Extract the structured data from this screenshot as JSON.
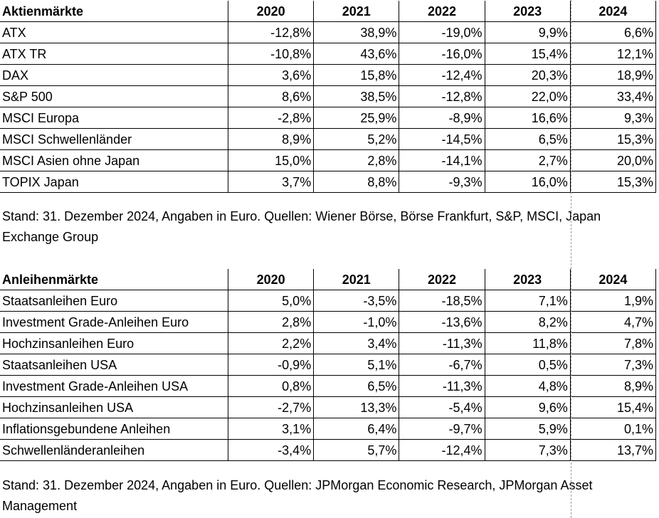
{
  "equity": {
    "header": [
      "Aktienmärkte",
      "2020",
      "2021",
      "2022",
      "2023",
      "2024"
    ],
    "rows": [
      [
        "ATX",
        "-12,8%",
        "38,9%",
        "-19,0%",
        "9,9%",
        "6,6%"
      ],
      [
        "ATX TR",
        "-10,8%",
        "43,6%",
        "-16,0%",
        "15,4%",
        "12,1%"
      ],
      [
        "DAX",
        "3,6%",
        "15,8%",
        "-12,4%",
        "20,3%",
        "18,9%"
      ],
      [
        "S&P 500",
        "8,6%",
        "38,5%",
        "-12,8%",
        "22,0%",
        "33,4%"
      ],
      [
        "MSCI Europa",
        "-2,8%",
        "25,9%",
        "-8,9%",
        "16,6%",
        "9,3%"
      ],
      [
        "MSCI Schwellenländer",
        "8,9%",
        "5,2%",
        "-14,5%",
        "6,5%",
        "15,3%"
      ],
      [
        "MSCI Asien ohne Japan",
        "15,0%",
        "2,8%",
        "-14,1%",
        "2,7%",
        "20,0%"
      ],
      [
        "TOPIX Japan",
        "3,7%",
        "8,8%",
        "-9,3%",
        "16,0%",
        "15,3%"
      ]
    ],
    "note": "Stand: 31. Dezember 2024, Angaben in Euro. Quellen: Wiener Börse, Börse Frankfurt, S&P, MSCI, Japan Exchange Group"
  },
  "bonds": {
    "header": [
      "Anleihenmärkte",
      "2020",
      "2021",
      "2022",
      "2023",
      "2024"
    ],
    "rows": [
      [
        "Staatsanleihen Euro",
        "5,0%",
        "-3,5%",
        "-18,5%",
        "7,1%",
        "1,9%"
      ],
      [
        "Investment Grade-Anleihen Euro",
        "2,8%",
        "-1,0%",
        "-13,6%",
        "8,2%",
        "4,7%"
      ],
      [
        "Hochzinsanleihen Euro",
        "2,2%",
        "3,4%",
        "-11,3%",
        "11,8%",
        "7,8%"
      ],
      [
        "Staatsanleihen USA",
        "-0,9%",
        "5,1%",
        "-6,7%",
        "0,5%",
        "7,3%"
      ],
      [
        "Investment Grade-Anleihen USA",
        "0,8%",
        "6,5%",
        "-11,3%",
        "4,8%",
        "8,9%"
      ],
      [
        "Hochzinsanleihen USA",
        "-2,7%",
        "13,3%",
        "-5,4%",
        "9,6%",
        "15,4%"
      ],
      [
        "Inflationsgebundene Anleihen",
        "3,1%",
        "6,4%",
        "-9,7%",
        "5,9%",
        "0,1%"
      ],
      [
        "Schwellenländeranleihen",
        "-3,4%",
        "5,7%",
        "-12,4%",
        "7,3%",
        "13,7%"
      ]
    ],
    "note": "Stand: 31. Dezember 2024, Angaben in Euro. Quellen: JPMorgan Economic Research, JPMorgan Asset Management"
  }
}
